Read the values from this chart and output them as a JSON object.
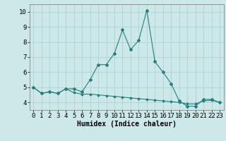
{
  "x": [
    0,
    1,
    2,
    3,
    4,
    5,
    6,
    7,
    8,
    9,
    10,
    11,
    12,
    13,
    14,
    15,
    16,
    17,
    18,
    19,
    20,
    21,
    22,
    23
  ],
  "line1": [
    5.0,
    4.6,
    4.7,
    4.6,
    4.9,
    4.9,
    4.7,
    5.5,
    6.5,
    6.5,
    7.25,
    8.8,
    7.5,
    8.1,
    10.1,
    6.7,
    6.0,
    5.25,
    4.1,
    3.75,
    3.75,
    4.2,
    4.2,
    4.0
  ],
  "line2": [
    5.0,
    4.6,
    4.7,
    4.6,
    4.9,
    4.65,
    4.55,
    4.55,
    4.5,
    4.45,
    4.4,
    4.35,
    4.3,
    4.25,
    4.2,
    4.15,
    4.1,
    4.05,
    4.0,
    3.9,
    3.9,
    4.1,
    4.15,
    4.0
  ],
  "line_color": "#267f7f",
  "bg_color": "#cce8e8",
  "grid_color": "#aacece",
  "xlabel": "Humidex (Indice chaleur)",
  "ylim": [
    3.5,
    10.5
  ],
  "xlim": [
    -0.5,
    23.5
  ],
  "yticks": [
    4,
    5,
    6,
    7,
    8,
    9,
    10
  ],
  "xticks": [
    0,
    1,
    2,
    3,
    4,
    5,
    6,
    7,
    8,
    9,
    10,
    11,
    12,
    13,
    14,
    15,
    16,
    17,
    18,
    19,
    20,
    21,
    22,
    23
  ],
  "xlabel_fontsize": 7,
  "tick_fontsize": 6.5
}
